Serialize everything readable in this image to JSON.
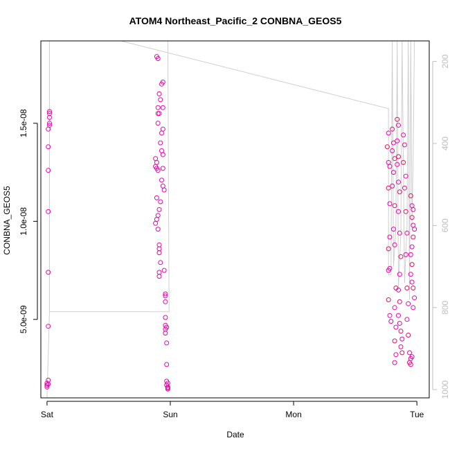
{
  "chart_data": {
    "type": "scatter",
    "title": "ATOM4 Northeast_Pacific_2 CONBNA_GEOS5",
    "xlabel": "Date",
    "ylabel": "CONBNA_GEOS5",
    "x_ticks": [
      "Sat",
      "Sun",
      "Mon",
      "Tue"
    ],
    "x_lim_days": [
      -0.05,
      3.1
    ],
    "y_ticks": [
      {
        "value": 5e-09,
        "label": "5.0e-09"
      },
      {
        "value": 1e-08,
        "label": "1.0e-08"
      },
      {
        "value": 1.5e-08,
        "label": "1.5e-08"
      }
    ],
    "ylim": [
      1e-09,
      1.92e-08
    ],
    "y2_label_ticks": [
      200,
      400,
      600,
      800,
      1000
    ],
    "y2_lim": [
      1020,
      150
    ],
    "grid": false,
    "colors": {
      "points": "#ee00aa",
      "points_alt": "#e0105a",
      "pressure_line": "#cfcfcf",
      "axis": "#000000",
      "right_axis": "#bdbdbd"
    },
    "series": [
      {
        "marker": "circle",
        "points": [
          [
            0.02,
            1.56e-08
          ],
          [
            0.02,
            1.55e-08
          ],
          [
            0.02,
            1.53e-08
          ],
          [
            0.02,
            1.5e-08
          ],
          [
            0.02,
            1.49e-08
          ],
          [
            0.01,
            1.47e-08
          ],
          [
            0.01,
            1.38e-08
          ],
          [
            0.01,
            1.26e-08
          ],
          [
            0.01,
            1.05e-08
          ],
          [
            0.01,
            7.4e-09
          ],
          [
            0.01,
            4.65e-09
          ],
          [
            0.01,
            1.9e-09
          ],
          [
            0.0,
            1.75e-09
          ],
          [
            0.0,
            1.65e-09
          ],
          [
            0.0,
            1.55e-09
          ],
          [
            0.01,
            1.7e-09
          ],
          [
            0.89,
            1.84e-08
          ],
          [
            0.9,
            1.83e-08
          ],
          [
            0.94,
            1.71e-08
          ],
          [
            0.93,
            1.7e-08
          ],
          [
            0.91,
            1.65e-08
          ],
          [
            0.92,
            1.62e-08
          ],
          [
            0.9,
            1.58e-08
          ],
          [
            0.94,
            1.58e-08
          ],
          [
            0.9,
            1.55e-08
          ],
          [
            0.91,
            1.55e-08
          ],
          [
            0.9,
            1.5e-08
          ],
          [
            0.94,
            1.47e-08
          ],
          [
            0.93,
            1.45e-08
          ],
          [
            0.92,
            1.4e-08
          ],
          [
            0.93,
            1.36e-08
          ],
          [
            0.94,
            1.34e-08
          ],
          [
            0.88,
            1.32e-08
          ],
          [
            0.89,
            1.3e-08
          ],
          [
            0.88,
            1.28e-08
          ],
          [
            0.89,
            1.27e-08
          ],
          [
            0.9,
            1.26e-08
          ],
          [
            0.94,
            1.27e-08
          ],
          [
            0.93,
            1.21e-08
          ],
          [
            0.94,
            1.18e-08
          ],
          [
            0.95,
            1.16e-08
          ],
          [
            0.89,
            1.12e-08
          ],
          [
            0.92,
            1.1e-08
          ],
          [
            0.91,
            1.06e-08
          ],
          [
            0.9,
            1.03e-08
          ],
          [
            0.89,
            1.01e-08
          ],
          [
            0.88,
            9.9e-09
          ],
          [
            0.9,
            9.6e-09
          ],
          [
            0.91,
            8.8e-09
          ],
          [
            0.91,
            8.6e-09
          ],
          [
            0.91,
            8.4e-09
          ],
          [
            0.92,
            7.9e-09
          ],
          [
            0.91,
            7.4e-09
          ],
          [
            0.91,
            7.2e-09
          ],
          [
            0.95,
            7.5e-09
          ],
          [
            0.96,
            6.3e-09
          ],
          [
            0.96,
            6.2e-09
          ],
          [
            0.96,
            5.9e-09
          ],
          [
            0.96,
            5.1e-09
          ],
          [
            0.96,
            4.7e-09
          ],
          [
            0.97,
            4.6e-09
          ],
          [
            0.96,
            4.5e-09
          ],
          [
            0.96,
            4.3e-09
          ],
          [
            0.97,
            3.8e-09
          ],
          [
            0.97,
            2.7e-09
          ],
          [
            0.97,
            1.85e-09
          ],
          [
            0.98,
            1.75e-09
          ],
          [
            0.97,
            1.65e-09
          ],
          [
            0.98,
            1.55e-09
          ],
          [
            0.98,
            1.5e-09
          ],
          [
            0.98,
            1.45e-09
          ],
          [
            2.77,
            1.45e-08
          ],
          [
            2.76,
            1.38e-08
          ],
          [
            2.77,
            1.3e-08
          ],
          [
            2.78,
            1.28e-08
          ],
          [
            2.77,
            1.17e-08
          ],
          [
            2.78,
            1.09e-08
          ],
          [
            2.78,
            9.2e-09
          ],
          [
            2.77,
            8.6e-09
          ],
          [
            2.78,
            7.6e-09
          ],
          [
            2.77,
            7.5e-09
          ],
          [
            2.77,
            6e-09
          ],
          [
            2.78,
            5.2e-09
          ],
          [
            2.79,
            4.9e-09
          ],
          [
            2.8,
            1.47e-08
          ],
          [
            2.81,
            1.4e-08
          ],
          [
            2.8,
            1.36e-08
          ],
          [
            2.82,
            1.32e-08
          ],
          [
            2.81,
            1.25e-08
          ],
          [
            2.8,
            1.18e-08
          ],
          [
            2.82,
            1.08e-08
          ],
          [
            2.81,
            9.6e-09
          ],
          [
            2.82,
            8.8e-09
          ],
          [
            2.83,
            6.6e-09
          ],
          [
            2.82,
            5.6e-09
          ],
          [
            2.83,
            4.6e-09
          ],
          [
            2.82,
            3.9e-09
          ],
          [
            2.83,
            3.2e-09
          ],
          [
            2.82,
            2.8e-09
          ],
          [
            2.84,
            1.52e-08
          ],
          [
            2.85,
            1.49e-08
          ],
          [
            2.84,
            1.41e-08
          ],
          [
            2.85,
            1.33e-08
          ],
          [
            2.84,
            1.29e-08
          ],
          [
            2.85,
            1.2e-08
          ],
          [
            2.86,
            1.15e-08
          ],
          [
            2.85,
            1.05e-08
          ],
          [
            2.86,
            9.4e-09
          ],
          [
            2.87,
            8.2e-09
          ],
          [
            2.86,
            7.3e-09
          ],
          [
            2.85,
            6.5e-09
          ],
          [
            2.86,
            5.9e-09
          ],
          [
            2.85,
            5.2e-09
          ],
          [
            2.86,
            4.8e-09
          ],
          [
            2.87,
            4.4e-09
          ],
          [
            2.88,
            4e-09
          ],
          [
            2.87,
            3.6e-09
          ],
          [
            2.88,
            3.3e-09
          ],
          [
            2.89,
            1.44e-08
          ],
          [
            2.9,
            1.39e-08
          ],
          [
            2.89,
            1.3e-08
          ],
          [
            2.91,
            1.23e-08
          ],
          [
            2.9,
            1.17e-08
          ],
          [
            2.91,
            1.05e-08
          ],
          [
            2.92,
            9.4e-09
          ],
          [
            2.91,
            8.3e-09
          ],
          [
            2.92,
            6.6e-09
          ],
          [
            2.93,
            5.8e-09
          ],
          [
            2.92,
            5e-09
          ],
          [
            2.93,
            4.2e-09
          ],
          [
            2.94,
            3.3e-09
          ],
          [
            2.95,
            3e-09
          ],
          [
            2.94,
            2.8e-09
          ],
          [
            2.95,
            2.7e-09
          ],
          [
            2.96,
            3.1e-09
          ],
          [
            2.95,
            1.13e-08
          ],
          [
            2.96,
            1.08e-08
          ],
          [
            2.97,
            1.06e-08
          ],
          [
            2.96,
            1.02e-08
          ],
          [
            2.97,
            9.8e-09
          ],
          [
            2.98,
            9.6e-09
          ],
          [
            2.97,
            9.2e-09
          ],
          [
            2.96,
            8.7e-09
          ],
          [
            2.95,
            8.3e-09
          ],
          [
            2.96,
            7.8e-09
          ],
          [
            2.95,
            7.3e-09
          ],
          [
            2.96,
            6.9e-09
          ],
          [
            2.97,
            6.6e-09
          ],
          [
            2.98,
            6.1e-09
          ],
          [
            2.97,
            5.6e-09
          ]
        ]
      },
      {
        "type": "line",
        "axis": "right",
        "points": [
          [
            0.0,
            1020
          ],
          [
            0.02,
            810
          ],
          [
            0.02,
            150
          ],
          [
            0.02,
            810
          ],
          [
            0.99,
            810
          ],
          [
            0.98,
            150
          ],
          [
            0.6,
            150
          ],
          [
            2.77,
            315
          ],
          [
            2.77,
            720
          ],
          [
            2.79,
            720
          ],
          [
            2.8,
            150
          ],
          [
            2.81,
            700
          ],
          [
            2.83,
            600
          ],
          [
            2.84,
            150
          ],
          [
            2.85,
            750
          ],
          [
            2.87,
            620
          ],
          [
            2.88,
            150
          ],
          [
            2.9,
            740
          ],
          [
            2.92,
            600
          ],
          [
            2.93,
            150
          ],
          [
            2.94,
            780
          ],
          [
            2.95,
            150
          ],
          [
            2.96,
            600
          ],
          [
            2.97,
            430
          ],
          [
            2.98,
            150
          ],
          [
            3.0,
            150
          ]
        ]
      }
    ]
  }
}
